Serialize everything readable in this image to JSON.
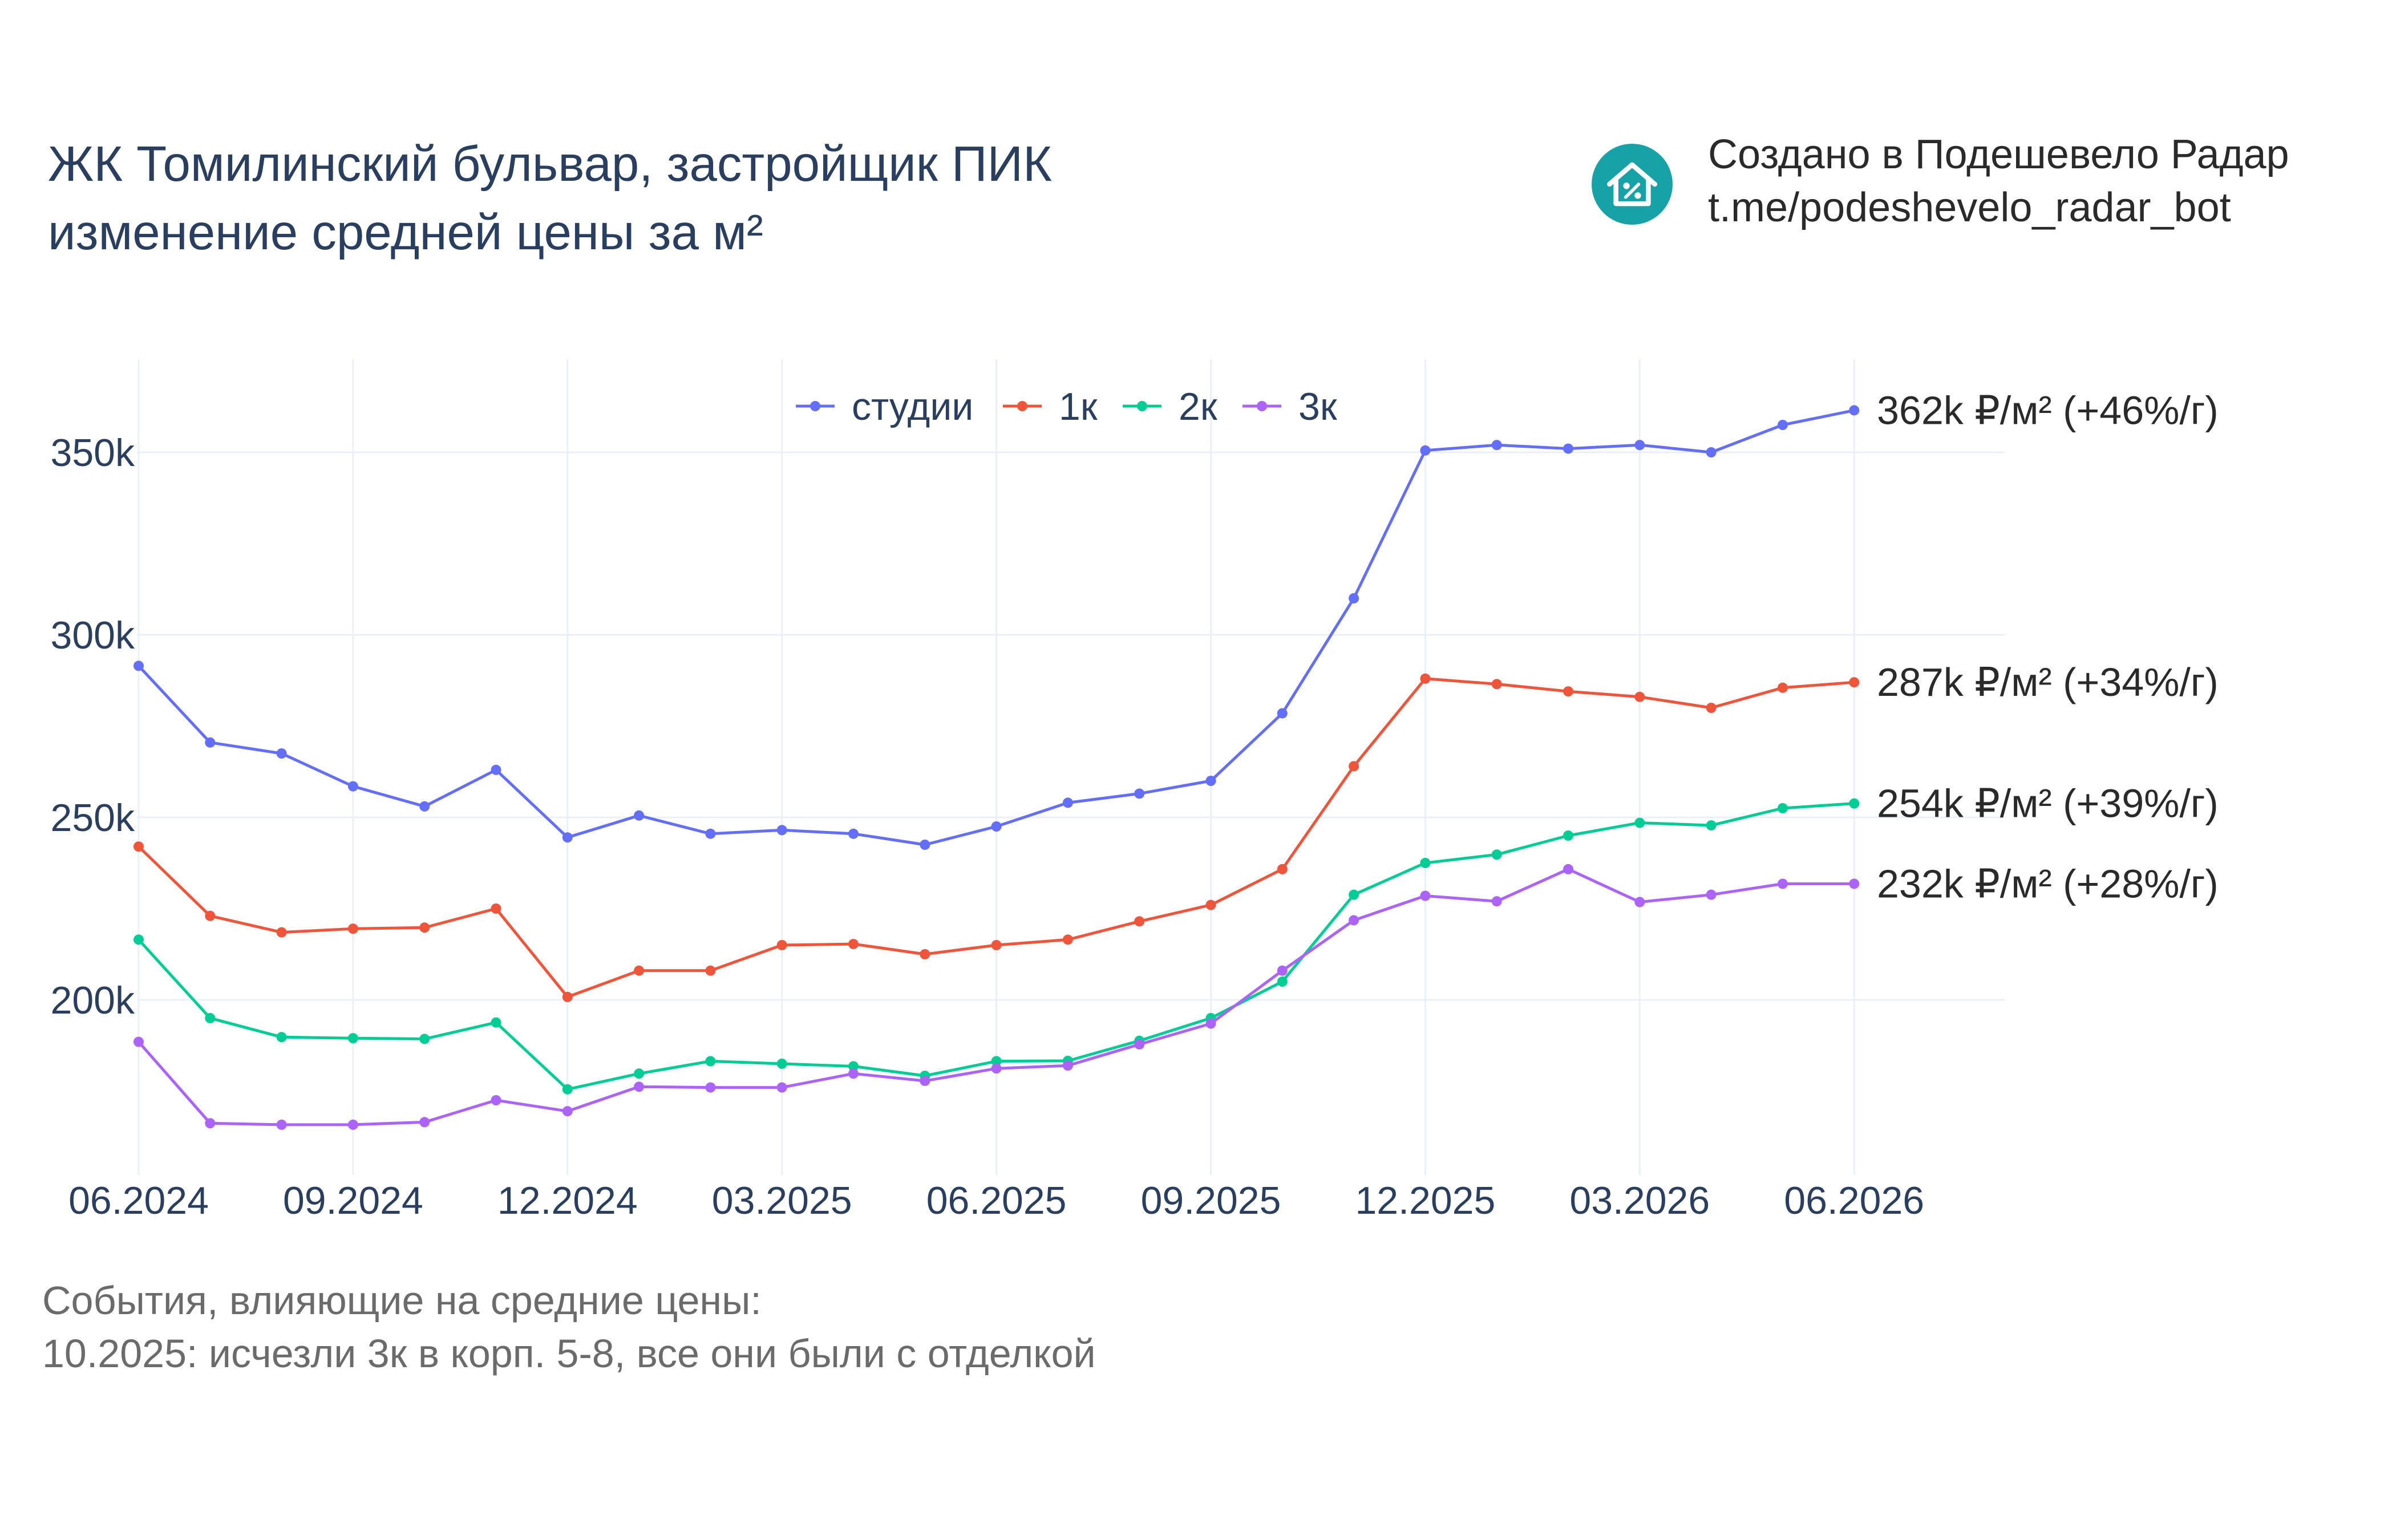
{
  "branding": {
    "line1": "Создано в Подешевело Радар",
    "line2": "t.me/podeshevelo_radar_bot",
    "logo_icon": "house-percent-icon",
    "logo_color": "#17a2a8"
  },
  "events": {
    "heading": "События, влияющие на средние цены:",
    "items": [
      "10.2025: исчезли 3к в корп. 5-8, все они были с отделкой"
    ]
  },
  "chart_data": {
    "type": "line",
    "title": [
      "ЖК Томилинский бульвар, застройщик ПИК",
      "изменение средней цены за м²"
    ],
    "xlabel": "",
    "ylabel": "",
    "grid": true,
    "legend_position": "top-center, horizontal",
    "x_ticks": [
      "06.2024",
      "09.2024",
      "12.2024",
      "03.2025",
      "06.2025",
      "09.2025",
      "12.2025",
      "03.2026",
      "06.2026"
    ],
    "y_ticks": [
      "200k",
      "250k",
      "300k",
      "350k"
    ],
    "y_tick_values": [
      200000,
      250000,
      300000,
      350000
    ],
    "ylim": [
      152000,
      375000
    ],
    "x": [
      "2024-06",
      "2024-07",
      "2024-08",
      "2024-09",
      "2024-10",
      "2024-11",
      "2024-12",
      "2025-01",
      "2025-02",
      "2025-03",
      "2025-04",
      "2025-05",
      "2025-06",
      "2025-07",
      "2025-08",
      "2025-09",
      "2025-10",
      "2025-11",
      "2025-12",
      "2026-01",
      "2026-02",
      "2026-03",
      "2026-04",
      "2026-05",
      "2026-06"
    ],
    "series": [
      {
        "name": "студии",
        "color": "#636efa",
        "end_label": "362k ₽/м² (+46%/г)",
        "values": [
          291500,
          270500,
          267500,
          258500,
          253000,
          263000,
          244500,
          250500,
          245500,
          246500,
          245500,
          242500,
          247500,
          254000,
          256500,
          260000,
          278500,
          310000,
          350500,
          352000,
          351000,
          352000,
          350000,
          357500,
          361500
        ]
      },
      {
        "name": "1к",
        "color": "#ef553b",
        "end_label": "287k ₽/м² (+34%/г)",
        "values": [
          242000,
          223000,
          218500,
          219500,
          219800,
          225000,
          200800,
          208000,
          208000,
          215000,
          215300,
          212500,
          215000,
          216500,
          221500,
          226000,
          235800,
          264000,
          288000,
          286500,
          284500,
          283000,
          280000,
          285500,
          287000
        ]
      },
      {
        "name": "2к",
        "color": "#00cc96",
        "end_label": "254k ₽/м² (+39%/г)",
        "values": [
          216500,
          195000,
          189800,
          189500,
          189300,
          193800,
          175500,
          179800,
          183200,
          182500,
          181800,
          179200,
          183200,
          183300,
          188800,
          195000,
          205000,
          228800,
          237500,
          239800,
          245000,
          248500,
          247800,
          252500,
          253800
        ]
      },
      {
        "name": "3к",
        "color": "#ab63fa",
        "end_label": "232k ₽/м² (+28%/г)",
        "values": [
          188500,
          166200,
          165800,
          165800,
          166500,
          172500,
          169500,
          176200,
          176000,
          176000,
          179800,
          177800,
          181200,
          182000,
          187800,
          193500,
          208000,
          221800,
          228500,
          227000,
          235800,
          226800,
          228800,
          231800,
          231800
        ]
      }
    ]
  }
}
